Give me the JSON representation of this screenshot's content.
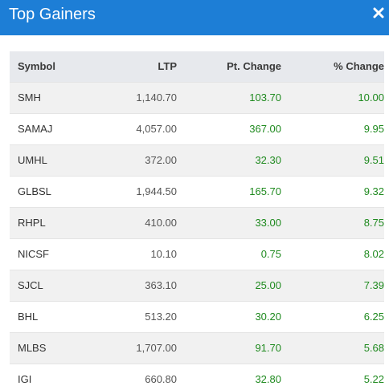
{
  "header": {
    "title": "Top Gainers",
    "bg_color": "#1d7ed6"
  },
  "table": {
    "columns": [
      "Symbol",
      "LTP",
      "Pt. Change",
      "% Change"
    ],
    "positive_color": "#1f8a1f",
    "rows": [
      {
        "symbol": "SMH",
        "ltp": "1,140.70",
        "pt_change": "103.70",
        "pct_change": "10.00"
      },
      {
        "symbol": "SAMAJ",
        "ltp": "4,057.00",
        "pt_change": "367.00",
        "pct_change": "9.95"
      },
      {
        "symbol": "UMHL",
        "ltp": "372.00",
        "pt_change": "32.30",
        "pct_change": "9.51"
      },
      {
        "symbol": "GLBSL",
        "ltp": "1,944.50",
        "pt_change": "165.70",
        "pct_change": "9.32"
      },
      {
        "symbol": "RHPL",
        "ltp": "410.00",
        "pt_change": "33.00",
        "pct_change": "8.75"
      },
      {
        "symbol": "NICSF",
        "ltp": "10.10",
        "pt_change": "0.75",
        "pct_change": "8.02"
      },
      {
        "symbol": "SJCL",
        "ltp": "363.10",
        "pt_change": "25.00",
        "pct_change": "7.39"
      },
      {
        "symbol": "BHL",
        "ltp": "513.20",
        "pt_change": "30.20",
        "pct_change": "6.25"
      },
      {
        "symbol": "MLBS",
        "ltp": "1,707.00",
        "pt_change": "91.70",
        "pct_change": "5.68"
      },
      {
        "symbol": "IGI",
        "ltp": "660.80",
        "pt_change": "32.80",
        "pct_change": "5.22"
      }
    ]
  }
}
